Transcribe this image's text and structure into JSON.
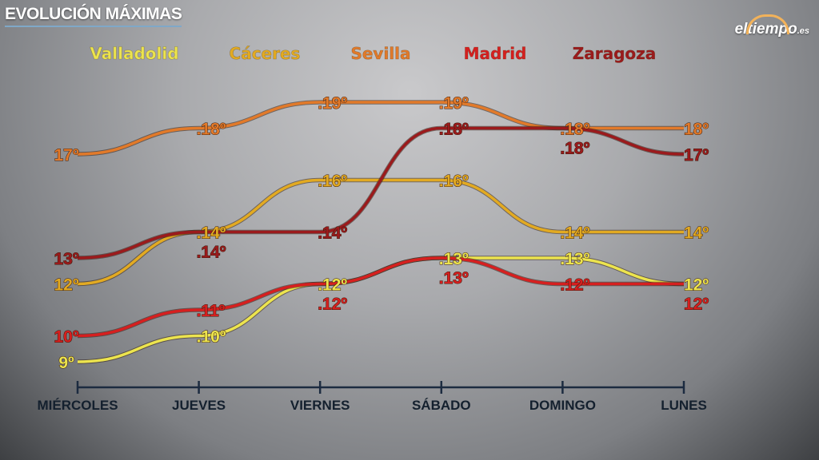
{
  "chart_data": {
    "type": "line",
    "title": "EVOLUCIÓN MÁXIMAS",
    "categories": [
      "MIÉRCOLES",
      "JUEVES",
      "VIERNES",
      "SÁBADO",
      "DOMINGO",
      "LUNES"
    ],
    "unit_suffix": "º",
    "ylim": [
      9,
      19
    ],
    "grid": false,
    "legend_placement": "top",
    "series": [
      {
        "name": "Valladolid",
        "color": "#ece44e",
        "values": [
          9,
          10,
          12,
          13,
          13,
          12
        ]
      },
      {
        "name": "Cáceres",
        "color": "#e2aa22",
        "values": [
          12,
          14,
          16,
          16,
          14,
          14
        ]
      },
      {
        "name": "Sevilla",
        "color": "#e27a2a",
        "values": [
          17,
          18,
          19,
          19,
          18,
          18
        ]
      },
      {
        "name": "Madrid",
        "color": "#d61f1f",
        "values": [
          10,
          11,
          12,
          13,
          12,
          12
        ]
      },
      {
        "name": "Zaragoza",
        "color": "#9b1a1c",
        "values": [
          13,
          14,
          14,
          18,
          18,
          17
        ]
      }
    ]
  },
  "logo": {
    "main": "eltiempo",
    "suffix": ".es"
  },
  "axis_color": "#1c2b40"
}
